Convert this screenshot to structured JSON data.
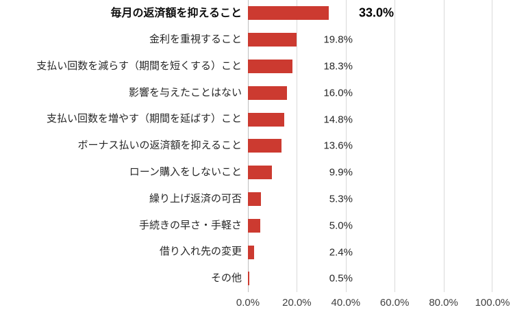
{
  "chart_data": {
    "type": "bar",
    "orientation": "horizontal",
    "title": "",
    "xlabel": "",
    "ylabel": "",
    "xlim": [
      0,
      100
    ],
    "grid": true,
    "legend": false,
    "categories": [
      "毎月の返済額を抑えること",
      "金利を重視すること",
      "支払い回数を減らす（期間を短くする）こと",
      "影響を与えたことはない",
      "支払い回数を増やす（期間を延ばす）こと",
      "ボーナス払いの返済額を抑えること",
      "ローン購入をしないこと",
      "繰り上げ返済の可否",
      "手続きの早さ・手軽さ",
      "借り入れ先の変更",
      "その他"
    ],
    "values": [
      33.0,
      19.8,
      18.3,
      16.0,
      14.8,
      13.6,
      9.9,
      5.3,
      5.0,
      2.4,
      0.5
    ],
    "value_labels": [
      "33.0%",
      "19.8%",
      "18.3%",
      "16.0%",
      "14.8%",
      "13.6%",
      "9.9%",
      "5.3%",
      "5.0%",
      "2.4%",
      "0.5%"
    ],
    "x_ticks": [
      "0.0%",
      "20.0%",
      "40.0%",
      "60.0%",
      "80.0%",
      "100.0%"
    ],
    "highlighted_row_index": 0,
    "colors": {
      "bar": "#cc3a30",
      "gridline": "#d9d9d9",
      "axis_line": "#bfbfbf",
      "label_text": "#262626",
      "tick_text": "#3f3f3f"
    }
  }
}
